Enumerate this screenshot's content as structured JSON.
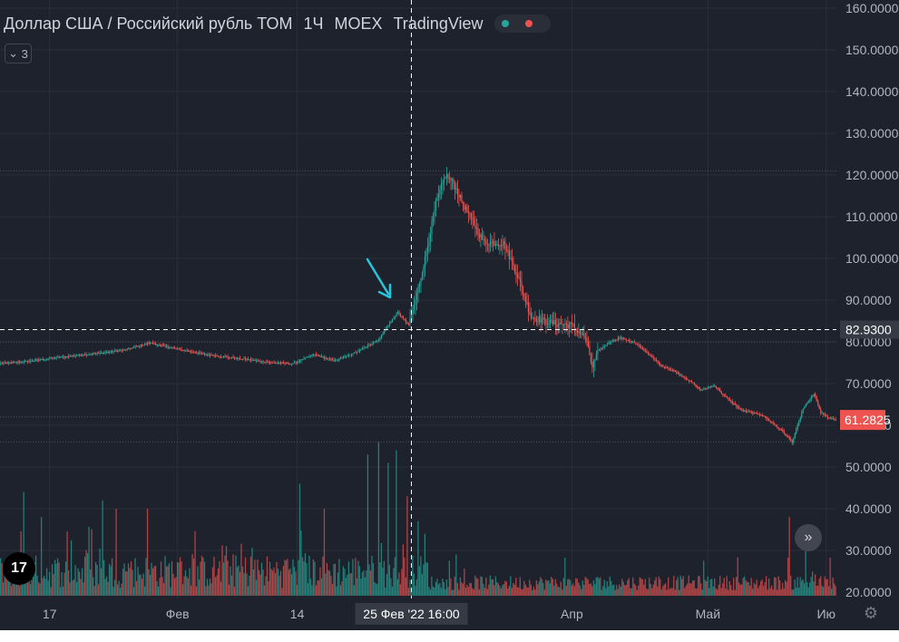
{
  "header": {
    "symbol": "Доллар США / Российский рубль ТОМ",
    "interval": "1Ч",
    "exchange": "MOEX",
    "source": "TradingView",
    "status_colors": [
      "#26a69a",
      "#ef5350"
    ]
  },
  "indicator_toggle": {
    "label": "3",
    "icon": "chevron-down-icon"
  },
  "logo": {
    "text": "17"
  },
  "icons": {
    "scroll": "double-chevron-right-icon",
    "settings": "gear-icon"
  },
  "colors": {
    "background": "#1e222d",
    "up": "#26a69a",
    "down": "#ef5350",
    "grid": "#2a2e39",
    "text": "#d1d4dc",
    "axis_text": "#b2b5be",
    "price_label_bg": "#ef5350",
    "crosshair_label_bg": "#1e222d",
    "arrow": "#26c6da"
  },
  "chart_data": {
    "type": "line",
    "title": "Доллар США / Российский рубль ТОМ",
    "y_axis": {
      "ticks": [
        160,
        150,
        140,
        130,
        120,
        110,
        100,
        90,
        80,
        70,
        60,
        50,
        40,
        30,
        20
      ],
      "tick_labels": [
        "160.0000",
        "150.0000",
        "140.0000",
        "130.0000",
        "120.0000",
        "110.0000",
        "100.0000",
        "90.0000",
        "80.0000",
        "70.0000",
        "60.0000",
        "50.0000",
        "40.0000",
        "30.0000",
        "20.0000"
      ],
      "ylim": [
        20,
        160
      ]
    },
    "x_axis": {
      "labels": [
        "17",
        "Фев",
        "14",
        "Апр",
        "Май",
        "Ию"
      ],
      "label_bar_index": [
        36,
        130,
        218,
        420,
        520,
        607
      ]
    },
    "current_price": {
      "label": "61.2825",
      "value": 61.2825
    },
    "crosshair": {
      "price_label": "82.9300",
      "price": 82.93,
      "time_label": "25 Фев '22   16:00",
      "bar_index": 302
    },
    "reference_lines": [
      121,
      80,
      62,
      56
    ],
    "close_keyframes": [
      [
        0,
        74.8
      ],
      [
        20,
        75.3
      ],
      [
        40,
        76.2
      ],
      [
        70,
        77.2
      ],
      [
        90,
        78.0
      ],
      [
        110,
        79.8
      ],
      [
        125,
        78.6
      ],
      [
        150,
        77.0
      ],
      [
        175,
        76.0
      ],
      [
        200,
        75.0
      ],
      [
        215,
        74.8
      ],
      [
        230,
        77.0
      ],
      [
        245,
        75.5
      ],
      [
        258,
        77.0
      ],
      [
        268,
        78.8
      ],
      [
        278,
        80.5
      ],
      [
        285,
        84.0
      ],
      [
        292,
        87.0
      ],
      [
        300,
        84.0
      ],
      [
        305,
        90.0
      ],
      [
        312,
        100.0
      ],
      [
        320,
        113.0
      ],
      [
        327,
        120.0
      ],
      [
        333,
        118.0
      ],
      [
        340,
        113.0
      ],
      [
        355,
        104.0
      ],
      [
        370,
        103.5
      ],
      [
        380,
        96.0
      ],
      [
        390,
        86.0
      ],
      [
        405,
        84.5
      ],
      [
        420,
        84.0
      ],
      [
        430,
        81.0
      ],
      [
        435,
        74.0
      ],
      [
        440,
        78.0
      ],
      [
        448,
        80.0
      ],
      [
        455,
        81.0
      ],
      [
        465,
        80.0
      ],
      [
        475,
        77.5
      ],
      [
        485,
        74.5
      ],
      [
        495,
        73.0
      ],
      [
        505,
        71.0
      ],
      [
        515,
        68.5
      ],
      [
        525,
        69.5
      ],
      [
        532,
        67.0
      ],
      [
        545,
        63.5
      ],
      [
        560,
        62.5
      ],
      [
        575,
        58.5
      ],
      [
        582,
        56.0
      ],
      [
        590,
        64.0
      ],
      [
        598,
        67.5
      ],
      [
        603,
        63.0
      ],
      [
        610,
        61.5
      ],
      [
        614,
        61.3
      ]
    ],
    "volume_scale_note": "volume panel shares y-axis 20-60 visually",
    "volume_spikes": [
      [
        17,
        44
      ],
      [
        30,
        38
      ],
      [
        75,
        42
      ],
      [
        85,
        40
      ],
      [
        108,
        40
      ],
      [
        220,
        46
      ],
      [
        238,
        40
      ],
      [
        270,
        53
      ],
      [
        278,
        56
      ],
      [
        285,
        51
      ],
      [
        291,
        54
      ],
      [
        299,
        43
      ],
      [
        307,
        37
      ],
      [
        312,
        34
      ],
      [
        580,
        38
      ],
      [
        592,
        36
      ]
    ]
  }
}
